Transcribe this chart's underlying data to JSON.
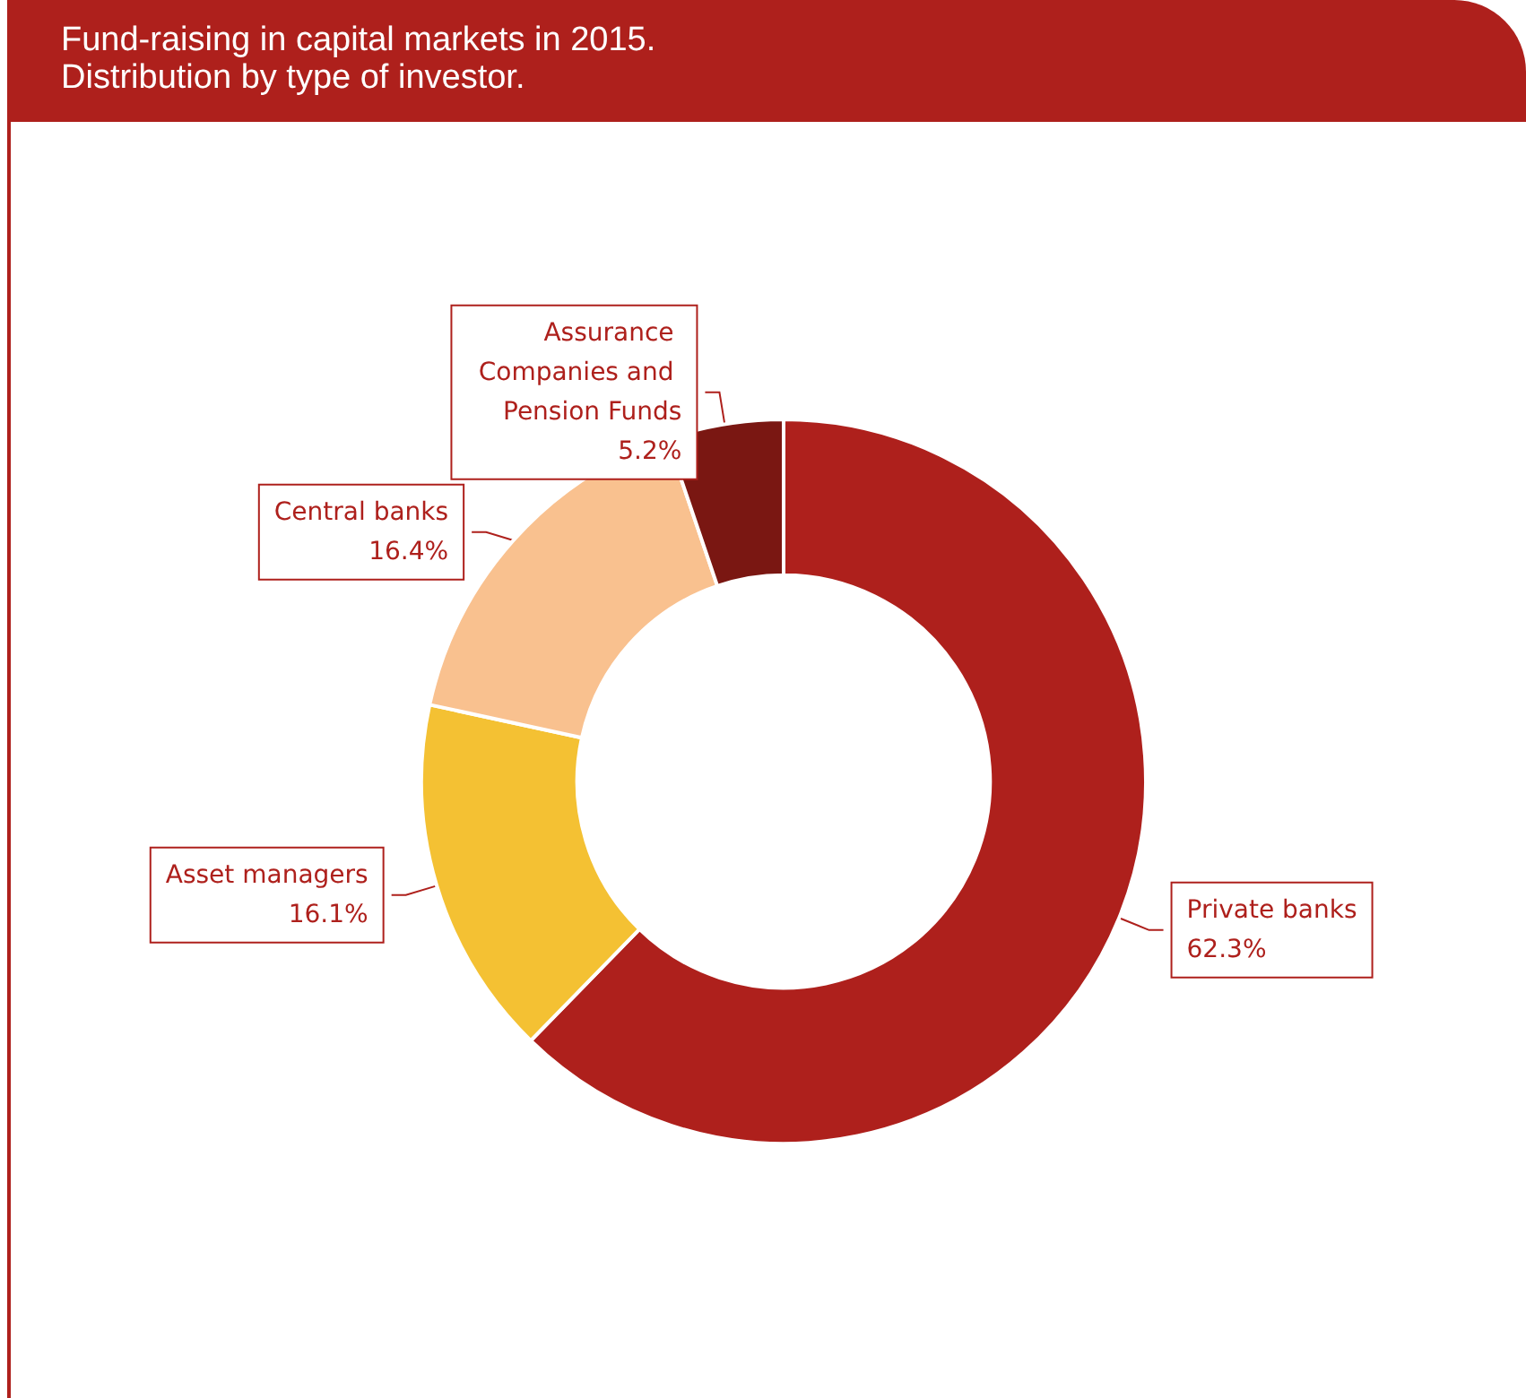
{
  "chart_data": {
    "type": "donut",
    "title": "Fund-raising in capital markets in 2015.\nDistribution by type of investor.",
    "categories": [
      "Private banks",
      "Asset managers",
      "Central banks",
      "Assurance Companies and Pension Funds"
    ],
    "values": [
      62.3,
      16.1,
      16.4,
      5.2
    ],
    "colors": [
      "#ae201c",
      "#f4c133",
      "#f9c18f",
      "#7a1712"
    ],
    "value_labels": [
      "62.3%",
      "16.1%",
      "16.4%",
      "5.2%"
    ],
    "legend": false
  }
}
